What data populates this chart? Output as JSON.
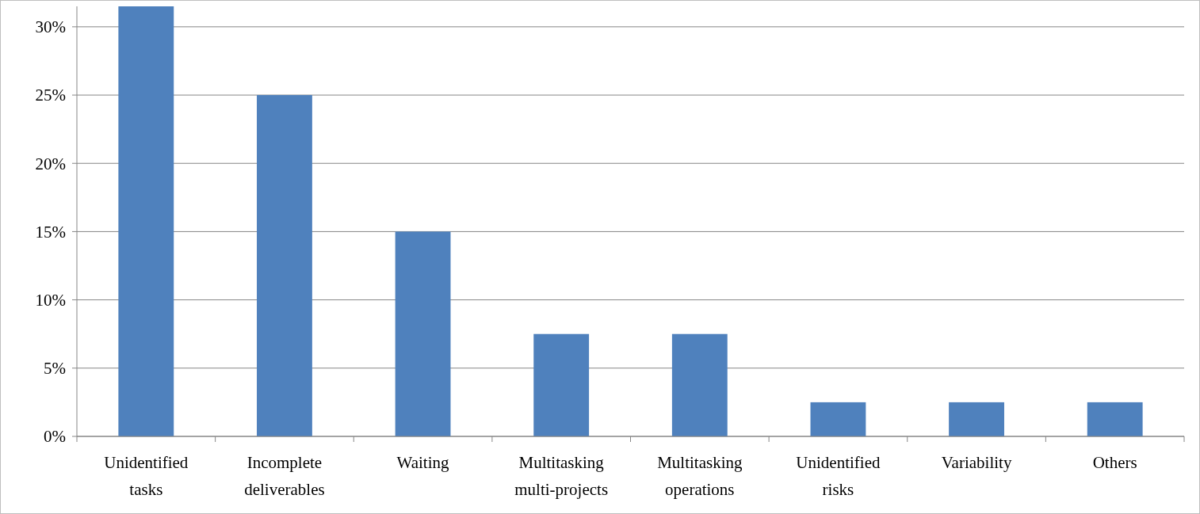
{
  "chart_data": {
    "type": "bar",
    "categories": [
      "Unidentified tasks",
      "Incomplete deliverables",
      "Waiting",
      "Multitasking multi-projects",
      "Multitasking operations",
      "Unidentified risks",
      "Variability",
      "Others"
    ],
    "values": [
      31.5,
      25,
      15,
      7.5,
      7.5,
      2.5,
      2.5,
      2.5
    ],
    "color": "#4f81bd",
    "ylim": [
      0,
      31.5
    ],
    "yticks": [
      {
        "value": 0,
        "label": "0%"
      },
      {
        "value": 5,
        "label": "5%"
      },
      {
        "value": 10,
        "label": "10%"
      },
      {
        "value": 15,
        "label": "15%"
      },
      {
        "value": 20,
        "label": "20%"
      },
      {
        "value": 25,
        "label": "25%"
      },
      {
        "value": 30,
        "label": "30%"
      }
    ],
    "grid": "y"
  }
}
